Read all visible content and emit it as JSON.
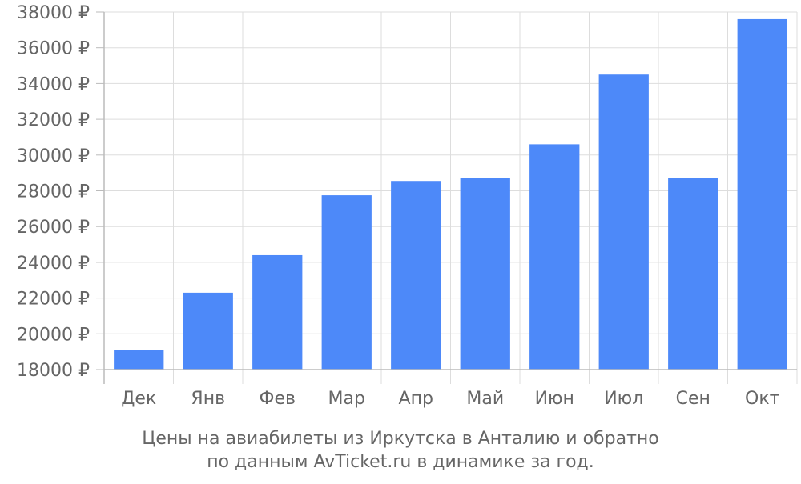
{
  "chart_data": {
    "type": "bar",
    "categories": [
      "Дек",
      "Янв",
      "Фев",
      "Мар",
      "Апр",
      "Май",
      "Июн",
      "Июл",
      "Сен",
      "Окт"
    ],
    "values": [
      19100,
      22300,
      24400,
      27750,
      28550,
      28700,
      30600,
      34500,
      28700,
      37600
    ],
    "ylim": [
      18000,
      38000
    ],
    "y_ticks": [
      18000,
      20000,
      22000,
      24000,
      26000,
      28000,
      30000,
      32000,
      34000,
      36000,
      38000
    ],
    "y_tick_labels": [
      "18000 ₽",
      "20000 ₽",
      "22000 ₽",
      "24000 ₽",
      "26000 ₽",
      "28000 ₽",
      "30000 ₽",
      "32000 ₽",
      "34000 ₽",
      "36000 ₽",
      "38000 ₽"
    ],
    "grid": true,
    "bar_color": "#4d89f9"
  },
  "caption": {
    "line1": "Цены на авиабилеты из Иркутска в Анталию и обратно",
    "line2": "по данным AvTicket.ru в динамике за год."
  },
  "colors": {
    "grid": "#dddddd",
    "axis": "#bbbbbb",
    "text": "#666666"
  }
}
